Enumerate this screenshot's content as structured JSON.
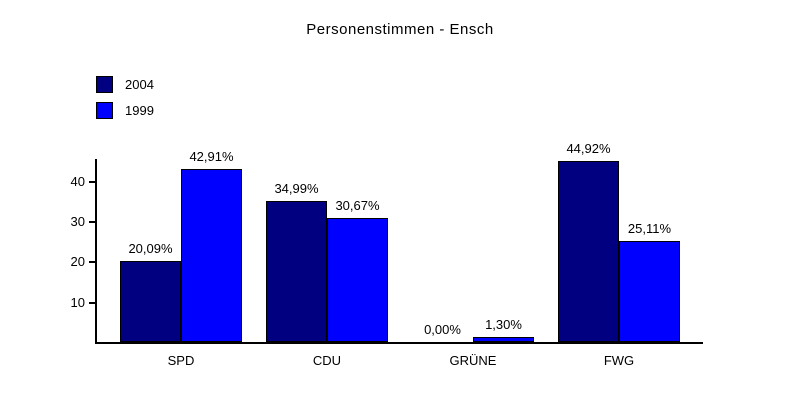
{
  "chart_data": {
    "type": "bar",
    "title": "Personenstimmen - Ensch",
    "categories": [
      "SPD",
      "CDU",
      "GRÜNE",
      "FWG"
    ],
    "series": [
      {
        "name": "2004",
        "color": "#000080",
        "values": [
          20.09,
          34.99,
          0.0,
          44.92
        ],
        "value_labels": [
          "20,09%",
          "34,99%",
          "0,00%",
          "44,92%"
        ]
      },
      {
        "name": "1999",
        "color": "#0000ff",
        "values": [
          42.91,
          30.67,
          1.3,
          25.11
        ],
        "value_labels": [
          "42,91%",
          "30,67%",
          "1,30%",
          "25,11%"
        ]
      }
    ],
    "xlabel": "",
    "ylabel": "",
    "y_ticks": [
      10,
      20,
      30,
      40
    ],
    "ylim": [
      0,
      45.5
    ],
    "grid": false,
    "legend_position": "top-left",
    "value_label_format": "percent-comma-decimal",
    "background_color": "#ffffff",
    "text_color": "#000000",
    "axis_color": "#000000"
  }
}
